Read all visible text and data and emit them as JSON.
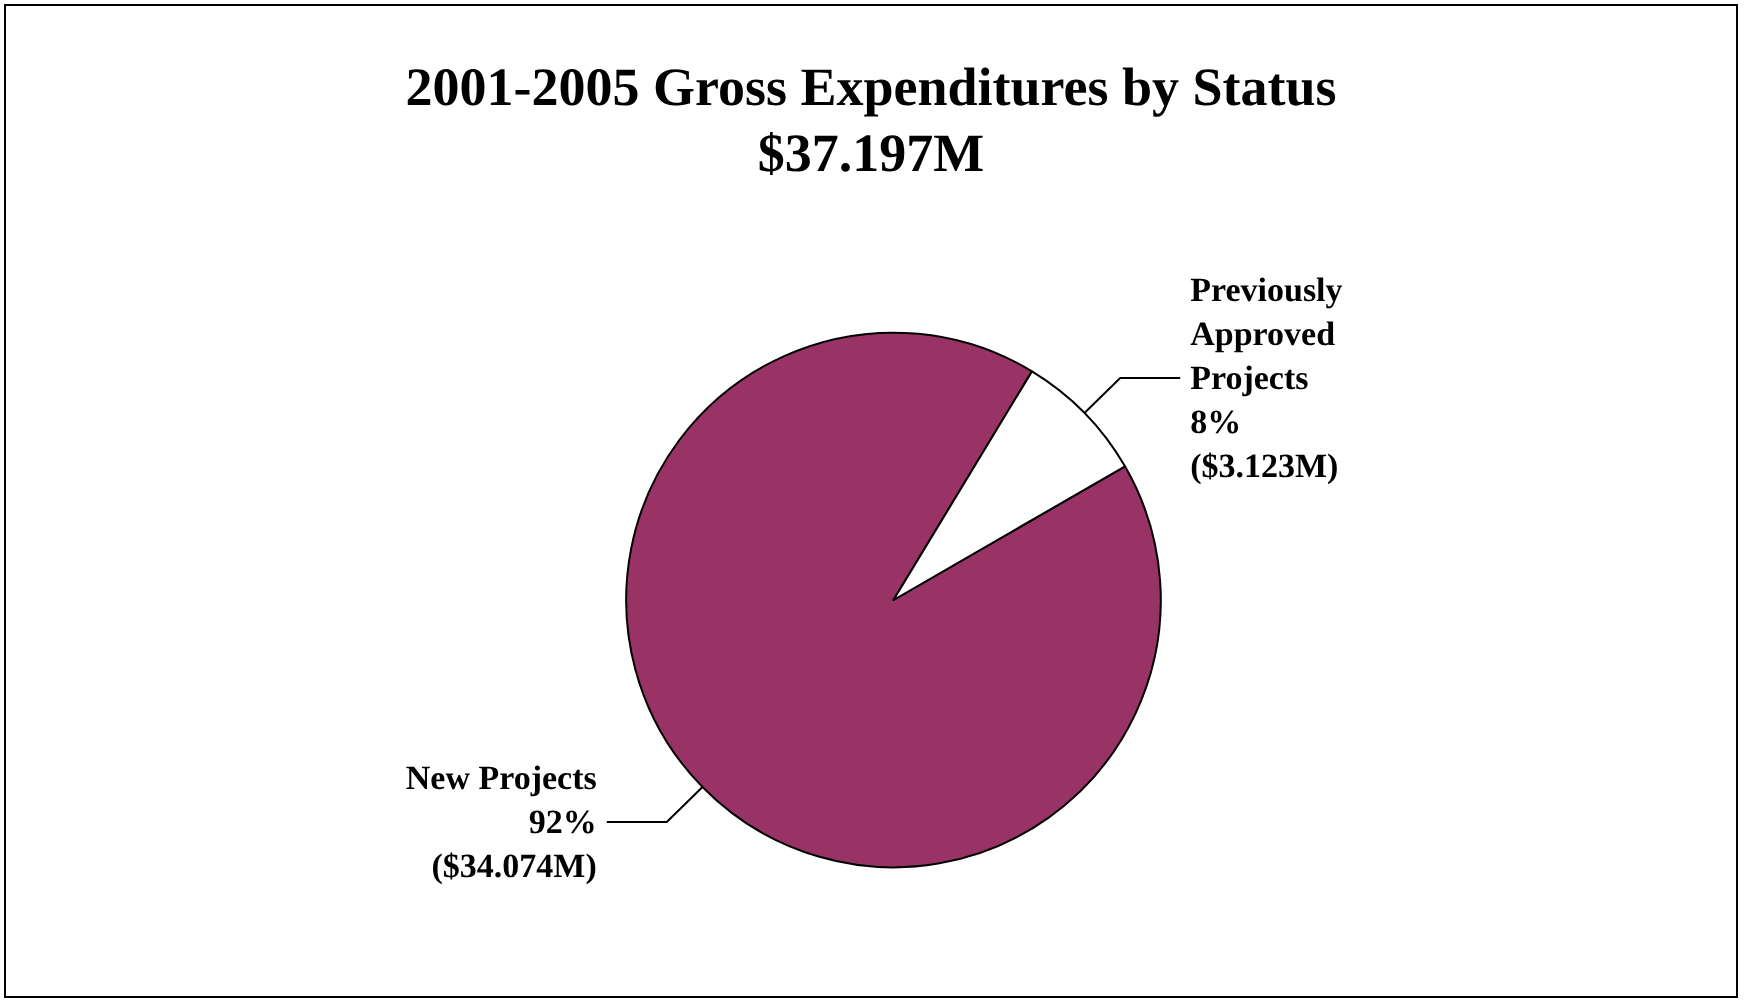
{
  "chart_data": {
    "type": "pie",
    "title": "2001-2005 Gross Expenditures by Status",
    "subtitle": "$37.197M",
    "categories": [
      "New Projects",
      "Previously Approved Projects"
    ],
    "values": [
      92,
      8
    ],
    "colors": [
      "#993366",
      "#ffffff"
    ],
    "value_labels": [
      "92%\n($34.074M)",
      "8%\n($3.123M)"
    ],
    "legend": false
  }
}
